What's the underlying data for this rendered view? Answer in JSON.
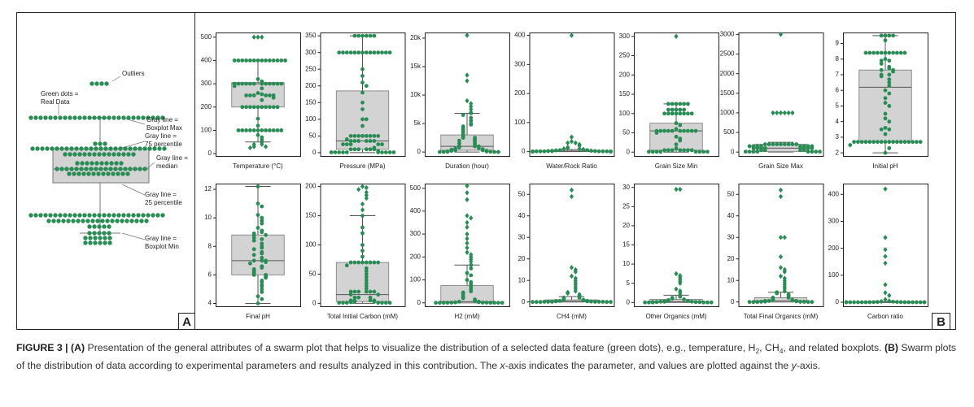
{
  "schematic": {
    "labels": [
      {
        "lines": [
          "Outliers"
        ]
      },
      {
        "lines": [
          "Green dots =",
          "Real Data"
        ]
      },
      {
        "lines": [
          "Gray line =",
          "Boxplot Max"
        ]
      },
      {
        "lines": [
          "Gray line =",
          "75 percentile"
        ]
      },
      {
        "lines": [
          "Gray line =",
          "median"
        ]
      },
      {
        "lines": [
          "Gray line =",
          "25 percentile"
        ]
      },
      {
        "lines": [
          "Gray line =",
          "Boxplot Min"
        ]
      }
    ],
    "panel_label": "A"
  },
  "panel_b_label": "B",
  "chart_data": [
    {
      "type": "swarm",
      "xlabel": "Temperature (°C)",
      "color": "#2a8c55",
      "box_color": "#d3d3d3",
      "ylim": [
        -10,
        520
      ],
      "yticks": [
        0,
        100,
        200,
        300,
        400,
        500
      ],
      "box": {
        "min": 50,
        "q1": 200,
        "median": 300,
        "q3": 305,
        "max": 400
      },
      "values": [
        500,
        500,
        500,
        400,
        400,
        400,
        400,
        400,
        400,
        400,
        400,
        400,
        400,
        400,
        400,
        400,
        400,
        320,
        310,
        300,
        300,
        300,
        300,
        300,
        300,
        300,
        300,
        300,
        300,
        300,
        300,
        290,
        280,
        260,
        255,
        250,
        250,
        250,
        250,
        250,
        250,
        240,
        230,
        200,
        200,
        200,
        200,
        200,
        200,
        200,
        200,
        200,
        200,
        150,
        120,
        100,
        100,
        100,
        100,
        100,
        100,
        100,
        100,
        100,
        100,
        100,
        100,
        80,
        70,
        60,
        50,
        40,
        40,
        30,
        30,
        25
      ]
    },
    {
      "type": "swarm",
      "xlabel": "Pressure (MPa)",
      "color": "#2a8c55",
      "box_color": "#d3d3d3",
      "ylim": [
        -10,
        360
      ],
      "yticks": [
        0,
        50,
        100,
        150,
        200,
        250,
        300,
        350
      ],
      "box": {
        "min": 0,
        "q1": 10,
        "median": 35,
        "q3": 185,
        "max": 350
      },
      "values": [
        350,
        350,
        350,
        350,
        350,
        350,
        300,
        300,
        300,
        300,
        300,
        300,
        300,
        300,
        300,
        300,
        300,
        300,
        300,
        300,
        250,
        230,
        210,
        200,
        180,
        150,
        130,
        100,
        100,
        80,
        50,
        50,
        50,
        50,
        50,
        50,
        50,
        50,
        40,
        35,
        35,
        35,
        35,
        35,
        35,
        25,
        25,
        25,
        25,
        25,
        15,
        10,
        10,
        10,
        10,
        10,
        10,
        5,
        1,
        1,
        1,
        1,
        1,
        1,
        1,
        1,
        1,
        1
      ]
    },
    {
      "type": "swarm",
      "xlabel": "Duration (hour)",
      "color": "#2a8c55",
      "box_color": "#d3d3d3",
      "ylim": [
        -700,
        21000
      ],
      "yticks": [
        0,
        {
          "value": 5000,
          "label": "5k"
        },
        {
          "value": 10000,
          "label": "10k"
        },
        {
          "value": 15000,
          "label": "15k"
        },
        {
          "value": 20000,
          "label": "20k"
        }
      ],
      "box": {
        "min": 0,
        "q1": 300,
        "median": 1000,
        "q3": 3000,
        "max": 6800
      },
      "values": [
        20500,
        13500,
        12500,
        9000,
        8500,
        8000,
        7500,
        7000,
        6800,
        6500,
        6000,
        5500,
        5000,
        4800,
        4500,
        4200,
        4000,
        3800,
        3500,
        3200,
        3000,
        2800,
        2500,
        2500,
        2200,
        2000,
        2000,
        1800,
        1500,
        1500,
        1200,
        1000,
        1000,
        1000,
        800,
        700,
        600,
        500,
        500,
        400,
        300,
        300,
        200,
        200,
        100,
        100,
        50,
        50,
        20,
        10,
        10,
        5
      ]
    },
    {
      "type": "swarm",
      "xlabel": "Water/Rock Ratio",
      "color": "#2a8c55",
      "box_color": "#d3d3d3",
      "ylim": [
        -15,
        410
      ],
      "yticks": [
        0,
        100,
        200,
        300,
        400
      ],
      "box": {
        "min": 0,
        "q1": 0,
        "median": 1,
        "q3": 3,
        "max": 7
      },
      "values": [
        400,
        50,
        35,
        30,
        30,
        25,
        20,
        15,
        12,
        10,
        10,
        8,
        6,
        5,
        5,
        4,
        3,
        3,
        2,
        2,
        2,
        1,
        1,
        1,
        1,
        1,
        1,
        0.5,
        0.5,
        0.5,
        0.5,
        0.1,
        0.1,
        0.1,
        0.1,
        0.1,
        0.1
      ]
    },
    {
      "type": "swarm",
      "xlabel": "Grain Size Min",
      "color": "#2a8c55",
      "box_color": "#d3d3d3",
      "ylim": [
        -10,
        310
      ],
      "yticks": [
        0,
        50,
        100,
        150,
        200,
        250,
        300
      ],
      "box": {
        "min": 0,
        "q1": 5,
        "median": 55,
        "q3": 75,
        "max": 125
      },
      "values": [
        300,
        125,
        125,
        125,
        125,
        125,
        125,
        110,
        110,
        110,
        110,
        110,
        100,
        100,
        100,
        100,
        100,
        100,
        100,
        100,
        75,
        70,
        60,
        55,
        55,
        55,
        55,
        55,
        55,
        55,
        55,
        55,
        55,
        50,
        40,
        35,
        30,
        20,
        10,
        5,
        5,
        5,
        5,
        5,
        5,
        5,
        1,
        1,
        1,
        1,
        1,
        1,
        1,
        1
      ]
    },
    {
      "type": "swarm",
      "xlabel": "Grain Size Max",
      "color": "#2a8c55",
      "box_color": "#d3d3d3",
      "ylim": [
        -100,
        3050
      ],
      "yticks": [
        0,
        500,
        1000,
        1500,
        2000,
        2500,
        3000
      ],
      "box": {
        "min": 0,
        "q1": 10,
        "median": 100,
        "q3": 200,
        "max": 250
      },
      "values": [
        3000,
        1000,
        1000,
        1000,
        1000,
        1000,
        1000,
        200,
        200,
        200,
        200,
        200,
        200,
        200,
        200,
        200,
        150,
        150,
        150,
        150,
        150,
        150,
        150,
        150,
        100,
        100,
        100,
        100,
        100,
        100,
        100,
        100,
        50,
        50,
        50,
        50,
        10,
        10,
        10,
        10,
        10,
        10,
        10,
        10
      ]
    },
    {
      "type": "swarm",
      "xlabel": "Initial pH",
      "color": "#2a8c55",
      "box_color": "#d3d3d3",
      "ylim": [
        1.8,
        9.7
      ],
      "yticks": [
        2,
        3,
        4,
        5,
        6,
        7,
        8,
        9
      ],
      "box": {
        "min": 2,
        "q1": 2.7,
        "median": 6.2,
        "q3": 7.3,
        "max": 9.5
      },
      "values": [
        9.5,
        9.5,
        9.5,
        9.5,
        9.2,
        8.4,
        8.4,
        8.4,
        8.4,
        8.4,
        8.4,
        8.4,
        8.4,
        8.4,
        8.4,
        8.4,
        8,
        7.9,
        7.9,
        7.7,
        7.5,
        7.4,
        7.3,
        7.3,
        7.2,
        7,
        7,
        6.9,
        6.7,
        6.5,
        6.3,
        6,
        5.8,
        5.5,
        5.2,
        5,
        4.5,
        4.2,
        4,
        3.6,
        3.5,
        3.5,
        3.2,
        2.7,
        2.7,
        2.7,
        2.7,
        2.7,
        2.7,
        2.7,
        2.7,
        2.7,
        2.7,
        2.7,
        2.7,
        2.7,
        2.7,
        2.7,
        2.7,
        2.7,
        2.7,
        2.5,
        2.3,
        2
      ]
    },
    {
      "type": "swarm",
      "xlabel": "Final pH",
      "color": "#2a8c55",
      "box_color": "#d3d3d3",
      "ylim": [
        3.8,
        12.4
      ],
      "yticks": [
        4,
        6,
        8,
        10,
        12
      ],
      "box": {
        "min": 4,
        "q1": 6,
        "median": 7,
        "q3": 8.8,
        "max": 12.2
      },
      "values": [
        12.2,
        11,
        10.8,
        10.2,
        10,
        9.8,
        9.6,
        9.3,
        9.1,
        9,
        8.9,
        8.8,
        8.8,
        8.6,
        8.5,
        8.4,
        8.2,
        8,
        7.9,
        7.8,
        7.6,
        7.5,
        7.4,
        7.2,
        7,
        7,
        7,
        6.9,
        6.8,
        6.6,
        6.5,
        6.4,
        6.3,
        6.2,
        6.1,
        6,
        6,
        5.9,
        5.8,
        5.6,
        5.5,
        5.3,
        5.2,
        5,
        4.8,
        4.5,
        4.3,
        4
      ]
    },
    {
      "type": "swarm",
      "xlabel": "Total Initial Carbon (mM)",
      "color": "#2a8c55",
      "box_color": "#d3d3d3",
      "ylim": [
        -5,
        205
      ],
      "yticks": [
        0,
        50,
        100,
        150,
        200
      ],
      "box": {
        "min": 0,
        "q1": 3,
        "median": 15,
        "q3": 70,
        "max": 150
      },
      "values": [
        200,
        198,
        195,
        190,
        185,
        180,
        170,
        160,
        150,
        130,
        120,
        100,
        90,
        80,
        70,
        70,
        70,
        70,
        70,
        70,
        70,
        70,
        65,
        60,
        55,
        50,
        45,
        40,
        35,
        30,
        25,
        20,
        20,
        20,
        20,
        20,
        20,
        15,
        15,
        10,
        10,
        10,
        5,
        5,
        5,
        5,
        3,
        3,
        2,
        1,
        1,
        1,
        1,
        1,
        1,
        1
      ]
    },
    {
      "type": "swarm",
      "xlabel": "H2 (mM)",
      "color": "#2a8c55",
      "box_color": "#d3d3d3",
      "ylim": [
        -15,
        520
      ],
      "yticks": [
        0,
        100,
        200,
        300,
        400,
        500
      ],
      "box": {
        "min": 0,
        "q1": 0,
        "median": 5,
        "q3": 75,
        "max": 165
      },
      "values": [
        510,
        480,
        450,
        380,
        370,
        350,
        330,
        300,
        280,
        260,
        240,
        220,
        210,
        200,
        190,
        180,
        165,
        150,
        130,
        120,
        100,
        90,
        80,
        70,
        60,
        50,
        45,
        40,
        30,
        25,
        20,
        15,
        10,
        8,
        5,
        5,
        3,
        2,
        1,
        1,
        1,
        0.5,
        0.5,
        0.5,
        0.5,
        0.1,
        0.1,
        0.1,
        0.1
      ]
    },
    {
      "type": "swarm",
      "xlabel": "CH4 (mM)",
      "color": "#2a8c55",
      "box_color": "#d3d3d3",
      "ylim": [
        -2,
        55
      ],
      "yticks": [
        0,
        10,
        20,
        30,
        40,
        50
      ],
      "box": {
        "min": 0,
        "q1": 0,
        "median": 0.3,
        "q3": 1,
        "max": 2.5
      },
      "values": [
        52,
        49,
        16,
        15,
        14,
        12,
        11,
        10,
        9,
        8,
        7,
        6,
        5,
        4.5,
        4,
        3.5,
        3,
        2.5,
        2,
        2,
        1.5,
        1,
        1,
        0.8,
        0.5,
        0.5,
        0.5,
        0.3,
        0.3,
        0.2,
        0.1,
        0.1,
        0.1,
        0.1,
        0.1,
        0.1,
        0,
        0,
        0,
        0,
        0
      ]
    },
    {
      "type": "swarm",
      "xlabel": "Other Organics (mM)",
      "color": "#2a8c55",
      "box_color": "#d3d3d3",
      "ylim": [
        -1,
        31
      ],
      "yticks": [
        0,
        5,
        10,
        15,
        20,
        25,
        30
      ],
      "box": {
        "min": 0,
        "q1": 0,
        "median": 0.2,
        "q3": 0.8,
        "max": 1.9
      },
      "values": [
        29.5,
        29.5,
        7.5,
        7,
        6.5,
        6,
        5.5,
        5,
        3.5,
        3,
        2.5,
        2,
        1.5,
        1.2,
        1,
        0.8,
        0.6,
        0.5,
        0.4,
        0.3,
        0.2,
        0.2,
        0.2,
        0.1,
        0.1,
        0.1,
        0.1,
        0,
        0,
        0,
        0,
        0,
        0
      ]
    },
    {
      "type": "swarm",
      "xlabel": "Total Final Organics (mM)",
      "color": "#2a8c55",
      "box_color": "#d3d3d3",
      "ylim": [
        -2,
        55
      ],
      "yticks": [
        0,
        10,
        20,
        30,
        40,
        50
      ],
      "box": {
        "min": 0,
        "q1": 0,
        "median": 0.5,
        "q3": 2,
        "max": 4.5
      },
      "values": [
        52,
        49,
        30,
        30,
        21,
        16,
        15,
        14,
        12,
        11,
        10,
        9,
        8,
        7,
        6,
        5,
        4.5,
        4,
        3.5,
        3,
        2.5,
        2,
        2,
        1.5,
        1,
        1,
        0.8,
        0.5,
        0.5,
        0.5,
        0.3,
        0.2,
        0.1,
        0.1,
        0.1,
        0,
        0,
        0,
        0,
        0
      ]
    },
    {
      "type": "swarm",
      "xlabel": "Carbon ratio",
      "color": "#2a8c55",
      "box_color": "#d3d3d3",
      "ylim": [
        -15,
        440
      ],
      "yticks": [
        0,
        100,
        200,
        300,
        400
      ],
      "box": {
        "min": 0,
        "q1": 0,
        "median": 0.1,
        "q3": 1,
        "max": 2
      },
      "values": [
        420,
        240,
        195,
        170,
        145,
        65,
        35,
        25,
        10,
        5,
        3,
        2,
        1,
        1,
        0.5,
        0.5,
        0.2,
        0.1,
        0.1,
        0.1,
        0,
        0,
        0,
        0,
        0,
        0,
        0,
        0,
        0,
        0,
        0
      ]
    }
  ],
  "caption": [
    {
      "text": "FIGURE 3 | ",
      "style": "bold"
    },
    {
      "text": "(A)",
      "style": "bold"
    },
    {
      "text": " Presentation of the general attributes of a swarm plot that helps to visualize the distribution of a selected data feature (green dots), e.g., temperature, H",
      "style": "normal"
    },
    {
      "text": "2",
      "style": "sub"
    },
    {
      "text": ", CH",
      "style": "normal"
    },
    {
      "text": "4",
      "style": "sub"
    },
    {
      "text": ", and related boxplots. ",
      "style": "normal"
    },
    {
      "text": "(B)",
      "style": "bold"
    },
    {
      "text": " Swarm plots of the distribution of data according to experimental parameters and results analyzed in this contribution. The ",
      "style": "normal"
    },
    {
      "text": "x",
      "style": "italic"
    },
    {
      "text": "-axis indicates the parameter, and values are plotted against the ",
      "style": "normal"
    },
    {
      "text": "y",
      "style": "italic"
    },
    {
      "text": "-axis.",
      "style": "normal"
    }
  ]
}
